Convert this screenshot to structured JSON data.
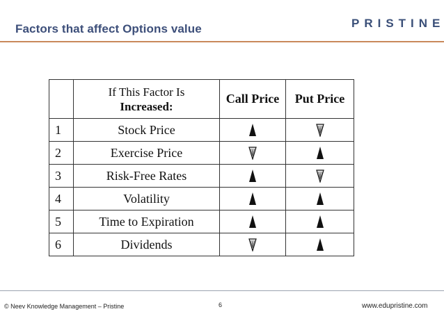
{
  "slide": {
    "title": "Factors that affect Options value",
    "logo": "PRISTINE"
  },
  "table": {
    "header": {
      "factor_line1": "If This Factor Is",
      "factor_line2": "Increased:",
      "call": "Call Price",
      "put": "Put Price"
    },
    "rows": [
      {
        "num": "1",
        "factor": "Stock Price",
        "call": "up",
        "put": "down"
      },
      {
        "num": "2",
        "factor": "Exercise Price",
        "call": "down",
        "put": "up"
      },
      {
        "num": "3",
        "factor": "Risk-Free Rates",
        "call": "up",
        "put": "down"
      },
      {
        "num": "4",
        "factor": "Volatility",
        "call": "up",
        "put": "up"
      },
      {
        "num": "5",
        "factor": "Time to Expiration",
        "call": "up",
        "put": "up"
      },
      {
        "num": "6",
        "factor": "Dividends",
        "call": "down",
        "put": "up"
      }
    ]
  },
  "footer": {
    "left": "© Neev Knowledge Management – Pristine",
    "page": "6",
    "right": "www.edupristine.com"
  }
}
